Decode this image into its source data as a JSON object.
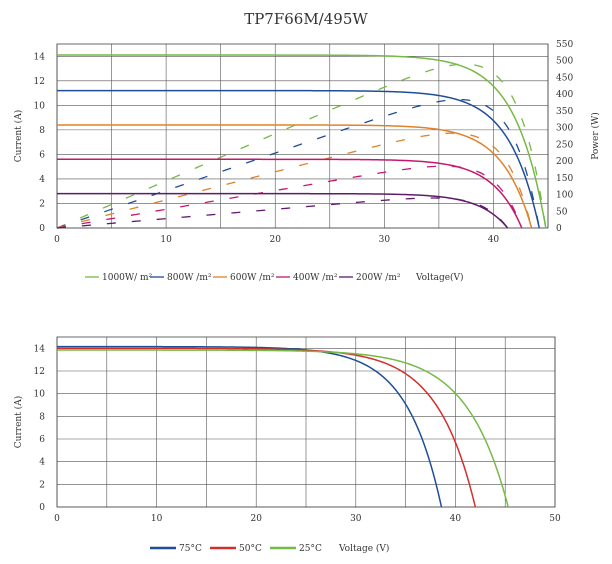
{
  "title": "TP7F66M/495W",
  "chart_data": [
    {
      "type": "line",
      "xlabel": "Voltage(V)",
      "ylabel": "Current (A)",
      "y2label": "Power (W)",
      "xlim": [
        0,
        45
      ],
      "ylim": [
        0,
        15
      ],
      "y2lim": [
        0,
        550
      ],
      "xticks": [
        0,
        10,
        20,
        30,
        40
      ],
      "yticks": [
        0,
        2,
        4,
        6,
        8,
        10,
        12,
        14
      ],
      "y2ticks": [
        0,
        50,
        100,
        150,
        200,
        250,
        300,
        350,
        400,
        450,
        500,
        550
      ],
      "grid": true,
      "legend_position": "bottom",
      "series": [
        {
          "name": "1000W/ m²",
          "color": "#76b947",
          "isc": 14.1,
          "voc": 44.8,
          "vmp": 37.5,
          "imp": 13.2
        },
        {
          "name": "800W /m²",
          "color": "#1f4e96",
          "isc": 11.2,
          "voc": 44.2,
          "vmp": 37.2,
          "imp": 10.6
        },
        {
          "name": "600W /m²",
          "color": "#e0822a",
          "isc": 8.4,
          "voc": 43.5,
          "vmp": 36.8,
          "imp": 7.9
        },
        {
          "name": "400W /m²",
          "color": "#c2186f",
          "isc": 5.6,
          "voc": 42.6,
          "vmp": 36.2,
          "imp": 5.3
        },
        {
          "name": "200W /m²",
          "color": "#5e1b6e",
          "isc": 2.8,
          "voc": 41.3,
          "vmp": 35.2,
          "imp": 2.6
        }
      ]
    },
    {
      "type": "line",
      "xlabel": "Voltage (V)",
      "ylabel": "Current (A)",
      "xlim": [
        0,
        50
      ],
      "ylim": [
        0,
        15
      ],
      "xticks": [
        0,
        10,
        20,
        30,
        40,
        50
      ],
      "yticks": [
        0,
        2,
        4,
        6,
        8,
        10,
        12,
        14
      ],
      "grid": true,
      "legend_position": "bottom",
      "series": [
        {
          "name": "75°C",
          "color": "#1f4e96",
          "isc": 14.15,
          "voc": 38.6
        },
        {
          "name": "50°C",
          "color": "#d0312d",
          "isc": 14.0,
          "voc": 42.0
        },
        {
          "name": "25°C",
          "color": "#76b947",
          "isc": 13.85,
          "voc": 45.3
        }
      ]
    }
  ]
}
